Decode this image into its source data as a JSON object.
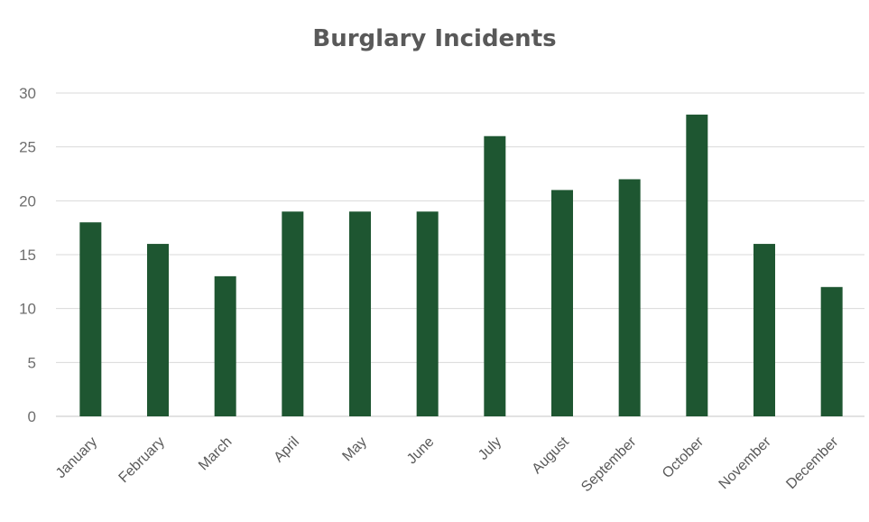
{
  "chart_data": {
    "type": "bar",
    "title": "Burglary Incidents",
    "xlabel": "",
    "ylabel": "",
    "categories": [
      "January",
      "February",
      "March",
      "April",
      "May",
      "June",
      "July",
      "August",
      "September",
      "October",
      "November",
      "December"
    ],
    "values": [
      18,
      16,
      13,
      19,
      19,
      19,
      26,
      21,
      22,
      28,
      16,
      12
    ],
    "ylim": [
      0,
      30
    ],
    "yticks": [
      "0",
      "5",
      "10",
      "15",
      "20",
      "25",
      "30"
    ],
    "grid": true,
    "legend": "none",
    "colors": {
      "bar": "#1e5631",
      "grid": "#d9d9d9",
      "text": "#595959"
    }
  }
}
